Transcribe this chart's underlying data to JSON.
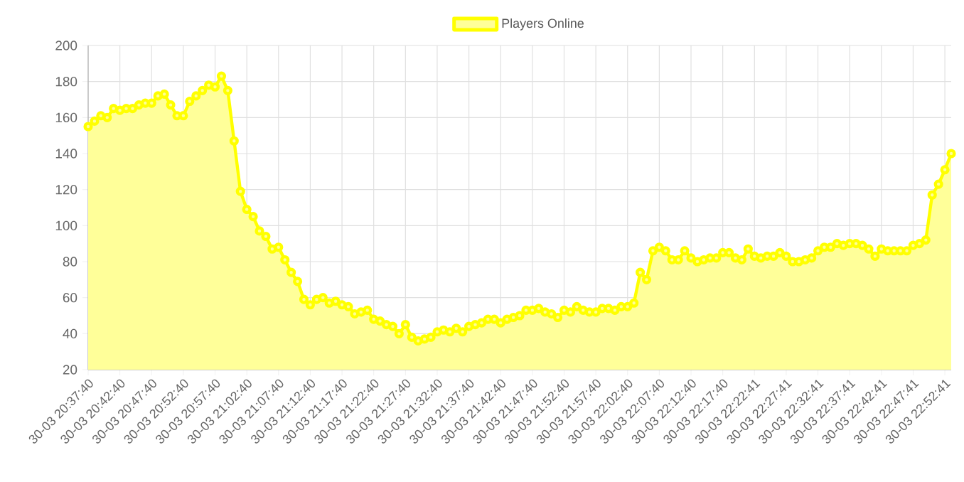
{
  "chart_data": {
    "type": "area",
    "categories": [
      "30-03 20:37:40",
      null,
      null,
      null,
      null,
      "30-03 20:42:40",
      null,
      null,
      null,
      null,
      "30-03 20:47:40",
      null,
      null,
      null,
      null,
      "30-03 20:52:40",
      null,
      null,
      null,
      null,
      "30-03 20:57:40",
      null,
      null,
      null,
      null,
      "30-03 21:02:40",
      null,
      null,
      null,
      null,
      "30-03 21:07:40",
      null,
      null,
      null,
      null,
      "30-03 21:12:40",
      null,
      null,
      null,
      null,
      "30-03 21:17:40",
      null,
      null,
      null,
      null,
      "30-03 21:22:40",
      null,
      null,
      null,
      null,
      "30-03 21:27:40",
      null,
      null,
      null,
      null,
      "30-03 21:32:40",
      null,
      null,
      null,
      null,
      "30-03 21:37:40",
      null,
      null,
      null,
      null,
      "30-03 21:42:40",
      null,
      null,
      null,
      null,
      "30-03 21:47:40",
      null,
      null,
      null,
      null,
      "30-03 21:52:40",
      null,
      null,
      null,
      null,
      "30-03 21:57:40",
      null,
      null,
      null,
      null,
      "30-03 22:02:40",
      null,
      null,
      null,
      null,
      "30-03 22:07:40",
      null,
      null,
      null,
      null,
      "30-03 22:12:40",
      null,
      null,
      null,
      null,
      "30-03 22:17:40",
      null,
      null,
      null,
      null,
      "30-03 22:22:41",
      null,
      null,
      null,
      null,
      "30-03 22:27:41",
      null,
      null,
      null,
      null,
      "30-03 22:32:41",
      null,
      null,
      null,
      null,
      "30-03 22:37:41",
      null,
      null,
      null,
      null,
      "30-03 22:42:41",
      null,
      null,
      null,
      null,
      "30-03 22:47:41",
      null,
      null,
      null,
      null,
      "30-03 22:52:41",
      null
    ],
    "series": [
      {
        "name": "Players Online",
        "color": "#ffff00",
        "values": [
          155,
          158,
          161,
          160,
          165,
          164,
          165,
          165,
          167,
          168,
          168,
          172,
          173,
          167,
          161,
          161,
          169,
          172,
          175,
          178,
          177,
          183,
          175,
          147,
          119,
          109,
          105,
          97,
          94,
          87,
          88,
          81,
          74,
          69,
          59,
          56,
          59,
          60,
          57,
          58,
          56,
          55,
          51,
          52,
          53,
          48,
          47,
          45,
          44,
          40,
          45,
          38,
          36,
          37,
          38,
          41,
          42,
          41,
          43,
          41,
          44,
          45,
          46,
          48,
          48,
          46,
          48,
          49,
          50,
          53,
          53,
          54,
          52,
          51,
          49,
          53,
          52,
          55,
          53,
          52,
          52,
          54,
          54,
          53,
          55,
          55,
          57,
          74,
          70,
          86,
          88,
          86,
          81,
          81,
          86,
          82,
          80,
          81,
          82,
          82,
          85,
          85,
          82,
          81,
          87,
          83,
          82,
          83,
          83,
          85,
          83,
          80,
          80,
          81,
          82,
          86,
          88,
          88,
          90,
          89,
          90,
          90,
          89,
          87,
          83,
          87,
          86,
          86,
          86,
          86,
          89,
          90,
          92,
          117,
          123,
          131,
          140
        ]
      }
    ],
    "ylim": [
      20,
      200
    ],
    "yticks": [
      20,
      40,
      60,
      80,
      100,
      120,
      140,
      160,
      180,
      200
    ],
    "grid": true,
    "legend": "top",
    "marker": "circle",
    "line_style": "solid"
  }
}
